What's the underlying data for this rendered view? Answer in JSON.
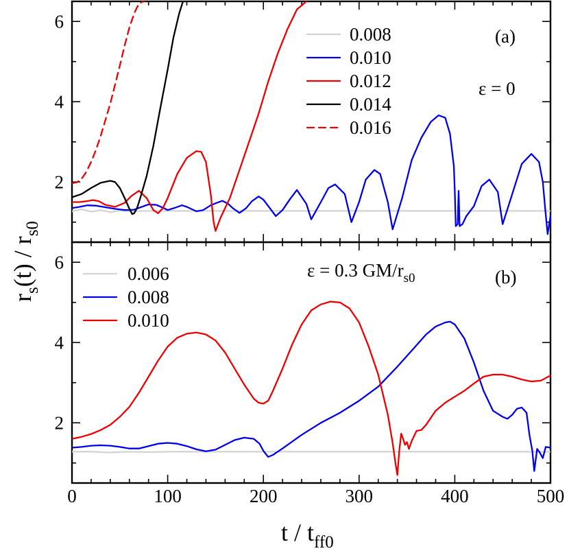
{
  "chart_data": [
    {
      "panel": "(a)",
      "type": "line",
      "annotation": "ε = 0",
      "ylim": [
        0.5,
        6.5
      ],
      "xlim": [
        0,
        500
      ],
      "yticks": [
        2,
        4,
        6
      ],
      "series": [
        {
          "name": "0.008",
          "color": "#d3d3d3",
          "style": "solid",
          "x": [
            0,
            10,
            20,
            30,
            40,
            50,
            60,
            80,
            100,
            150,
            200,
            250,
            300,
            350,
            400,
            450,
            500
          ],
          "y": [
            1.27,
            1.32,
            1.26,
            1.3,
            1.25,
            1.29,
            1.27,
            1.28,
            1.28,
            1.28,
            1.28,
            1.28,
            1.28,
            1.28,
            1.28,
            1.28,
            1.28
          ]
        },
        {
          "name": "0.010",
          "color": "#0000ee",
          "style": "solid",
          "x": [
            0,
            8,
            16,
            25,
            35,
            45,
            55,
            65,
            75,
            80,
            88,
            95,
            100,
            108,
            115,
            120,
            130,
            137,
            145,
            150,
            157,
            163,
            168,
            175,
            182,
            188,
            195,
            200,
            207,
            213,
            220,
            228,
            235,
            245,
            250,
            260,
            268,
            275,
            285,
            292,
            300,
            307,
            316,
            322,
            330,
            335,
            345,
            355,
            365,
            375,
            383,
            390,
            395,
            399,
            400,
            401,
            403,
            404,
            405,
            408,
            412,
            420,
            428,
            436,
            445,
            450,
            460,
            470,
            480,
            488,
            492,
            495,
            497,
            500
          ],
          "x_note": "",
          "y": [
            1.35,
            1.38,
            1.42,
            1.41,
            1.37,
            1.33,
            1.3,
            1.31,
            1.4,
            1.44,
            1.43,
            1.36,
            1.3,
            1.36,
            1.42,
            1.38,
            1.27,
            1.3,
            1.42,
            1.47,
            1.53,
            1.46,
            1.35,
            1.23,
            1.35,
            1.52,
            1.64,
            1.56,
            1.34,
            1.15,
            1.3,
            1.58,
            1.8,
            1.45,
            1.07,
            1.5,
            1.85,
            1.94,
            1.7,
            1.0,
            1.5,
            2.06,
            2.3,
            2.2,
            1.5,
            0.82,
            1.6,
            2.55,
            3.1,
            3.5,
            3.66,
            3.6,
            3.2,
            2.4,
            1.78,
            0.9,
            0.95,
            1.78,
            0.9,
            0.95,
            1.15,
            1.4,
            1.9,
            2.06,
            1.75,
            0.95,
            1.7,
            2.45,
            2.7,
            2.5,
            2.0,
            1.2,
            0.7,
            1.15
          ]
        },
        {
          "name": "0.012",
          "color": "#ee0000",
          "style": "solid",
          "x": [
            0,
            8,
            15,
            22,
            28,
            35,
            45,
            55,
            62,
            70,
            78,
            85,
            90,
            95,
            100,
            110,
            120,
            130,
            135,
            140,
            145,
            148,
            150,
            155,
            165,
            175,
            185,
            195,
            205,
            215,
            225,
            235,
            245
          ],
          "y": [
            1.5,
            1.5,
            1.52,
            1.55,
            1.52,
            1.43,
            1.38,
            1.48,
            1.65,
            1.78,
            1.6,
            1.3,
            1.22,
            1.35,
            1.6,
            2.2,
            2.6,
            2.77,
            2.75,
            2.5,
            1.7,
            1.0,
            0.78,
            1.1,
            1.6,
            2.3,
            3.0,
            3.7,
            4.5,
            5.2,
            5.8,
            6.3,
            6.5
          ]
        },
        {
          "name": "0.014",
          "color": "#000000",
          "style": "solid",
          "x": [
            0,
            10,
            20,
            30,
            40,
            45,
            50,
            55,
            60,
            63,
            65,
            68,
            72,
            78,
            85,
            92,
            100,
            106,
            112,
            116,
            118
          ],
          "y": [
            1.62,
            1.7,
            1.85,
            1.98,
            2.03,
            2.0,
            1.85,
            1.6,
            1.33,
            1.2,
            1.22,
            1.35,
            1.65,
            2.15,
            2.9,
            3.8,
            4.8,
            5.6,
            6.2,
            6.5,
            6.5
          ]
        },
        {
          "name": "0.016",
          "color": "#ee0000",
          "style": "dashed",
          "x": [
            0,
            5,
            10,
            15,
            20,
            25,
            30,
            40,
            50,
            55,
            60,
            65,
            70,
            75
          ],
          "y": [
            1.97,
            1.99,
            2.08,
            2.25,
            2.5,
            2.8,
            3.15,
            3.95,
            4.9,
            5.4,
            5.85,
            6.2,
            6.45,
            6.5
          ]
        }
      ]
    },
    {
      "panel": "(b)",
      "type": "line",
      "annotation": "ε = 0.3 GM/r",
      "annotation_sub": "s0",
      "ylim": [
        0.5,
        6.5
      ],
      "xlim": [
        0,
        500
      ],
      "yticks": [
        2,
        4,
        6
      ],
      "series": [
        {
          "name": "0.006",
          "color": "#d3d3d3",
          "style": "solid",
          "x": [
            0,
            20,
            40,
            60,
            80,
            100,
            150,
            200,
            250,
            300,
            350,
            400,
            450,
            500
          ],
          "y": [
            1.28,
            1.28,
            1.26,
            1.28,
            1.27,
            1.28,
            1.28,
            1.28,
            1.28,
            1.28,
            1.28,
            1.28,
            1.28,
            1.28
          ]
        },
        {
          "name": "0.008",
          "color": "#0000ee",
          "style": "solid",
          "x": [
            0,
            10,
            20,
            30,
            40,
            50,
            60,
            70,
            80,
            90,
            100,
            110,
            120,
            130,
            140,
            150,
            160,
            170,
            180,
            190,
            196,
            200,
            205,
            210,
            220,
            240,
            260,
            280,
            300,
            320,
            340,
            355,
            370,
            380,
            390,
            395,
            400,
            410,
            420,
            430,
            440,
            450,
            455,
            460,
            465,
            470,
            475,
            478,
            481,
            483,
            486,
            489,
            492,
            495,
            500
          ],
          "y": [
            1.38,
            1.4,
            1.43,
            1.44,
            1.43,
            1.4,
            1.36,
            1.36,
            1.42,
            1.48,
            1.5,
            1.48,
            1.42,
            1.34,
            1.29,
            1.33,
            1.45,
            1.57,
            1.63,
            1.6,
            1.48,
            1.3,
            1.15,
            1.2,
            1.36,
            1.7,
            2.0,
            2.25,
            2.55,
            2.9,
            3.4,
            3.8,
            4.2,
            4.4,
            4.5,
            4.52,
            4.45,
            4.1,
            3.5,
            2.8,
            2.3,
            2.15,
            2.1,
            2.2,
            2.35,
            2.38,
            2.25,
            1.7,
            1.3,
            0.8,
            1.35,
            1.25,
            1.12,
            1.4,
            1.38
          ]
        },
        {
          "name": "0.010",
          "color": "#ee0000",
          "style": "solid",
          "x": [
            0,
            10,
            20,
            30,
            40,
            50,
            60,
            70,
            80,
            90,
            100,
            110,
            120,
            130,
            140,
            150,
            160,
            170,
            180,
            190,
            195,
            200,
            205,
            210,
            220,
            230,
            240,
            250,
            260,
            270,
            280,
            290,
            300,
            310,
            320,
            325,
            330,
            335,
            338,
            340,
            342,
            344,
            346,
            348,
            350,
            352,
            355,
            360,
            365,
            370,
            380,
            390,
            400,
            410,
            420,
            430,
            440,
            450,
            460,
            470,
            480,
            490,
            500
          ],
          "y": [
            1.6,
            1.65,
            1.72,
            1.82,
            1.95,
            2.15,
            2.4,
            2.75,
            3.15,
            3.55,
            3.9,
            4.12,
            4.22,
            4.25,
            4.2,
            4.05,
            3.75,
            3.35,
            2.95,
            2.6,
            2.5,
            2.48,
            2.55,
            2.8,
            3.35,
            3.95,
            4.45,
            4.8,
            4.95,
            5.02,
            5.0,
            4.85,
            4.5,
            3.9,
            3.2,
            2.7,
            2.2,
            1.5,
            1.0,
            0.7,
            1.3,
            1.73,
            1.6,
            1.45,
            1.52,
            1.35,
            1.55,
            1.8,
            1.82,
            1.95,
            2.3,
            2.5,
            2.65,
            2.8,
            2.98,
            3.15,
            3.2,
            3.2,
            3.15,
            3.08,
            3.03,
            3.05,
            3.18
          ]
        }
      ]
    }
  ],
  "axes": {
    "xlabel": "t / t",
    "xlabel_sub": "ff0",
    "ylabel": "r",
    "ylabel_sub_1": "s",
    "ylabel_mid": "(t) / r",
    "ylabel_sub_2": "s0",
    "xticks": [
      0,
      100,
      200,
      300,
      400,
      500
    ]
  }
}
